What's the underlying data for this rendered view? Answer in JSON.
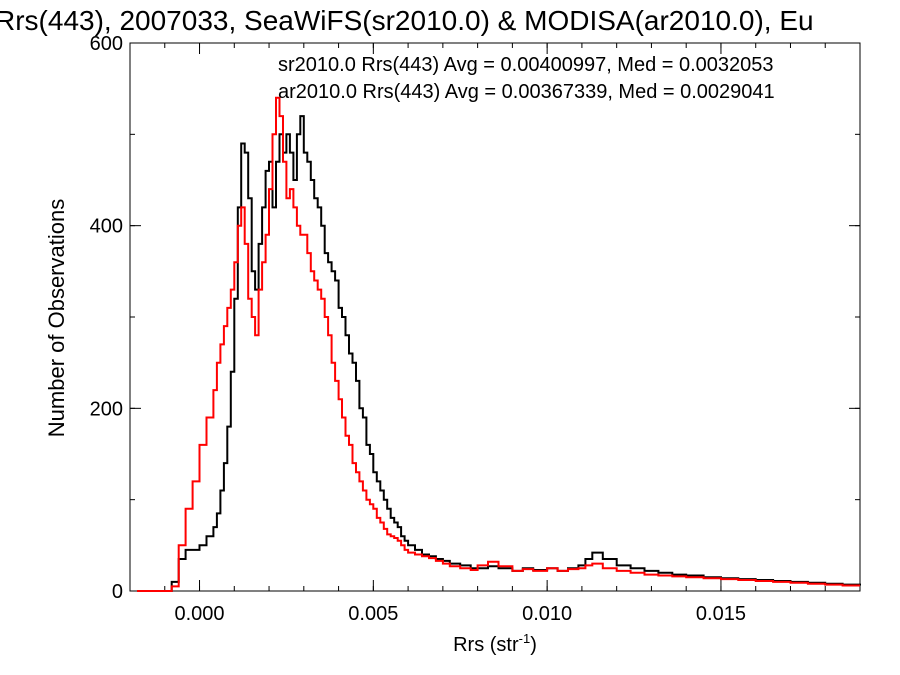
{
  "chart_data": {
    "type": "line",
    "title": "Rrs(443), 2007033, SeaWiFS(sr2010.0) & MODISA(ar2010.0), Eu",
    "xlabel": "Rrs (str",
    "xlabel_sup": "-1",
    "xlabel_close": ")",
    "ylabel": "Number of Observations",
    "xlim": [
      -0.002,
      0.019
    ],
    "ylim": [
      0,
      600
    ],
    "xticks": [
      0.0,
      0.005,
      0.01,
      0.015
    ],
    "xtick_labels": [
      "0.000",
      "0.005",
      "0.010",
      "0.015"
    ],
    "yticks": [
      0,
      200,
      400,
      600
    ],
    "ytick_labels": [
      "0",
      "200",
      "400",
      "600"
    ],
    "grid": false,
    "annotations": [
      {
        "text": "sr2010.0 Rrs(443) Avg = 0.00400997, Med = 0.0032053",
        "color": "#000000"
      },
      {
        "text": "ar2010.0 Rrs(443) Avg = 0.00367339, Med = 0.0029041",
        "color": "#ff0000"
      }
    ],
    "series": [
      {
        "color": "#000000",
        "x": [
          -0.0018,
          -0.001,
          -0.0008,
          -0.0006,
          -0.0004,
          -0.0002,
          0.0,
          0.0002,
          0.0004,
          0.0005,
          0.0006,
          0.0007,
          0.0008,
          0.0009,
          0.001,
          0.0011,
          0.0012,
          0.0013,
          0.0014,
          0.0015,
          0.0016,
          0.0017,
          0.0018,
          0.0019,
          0.002,
          0.0021,
          0.0022,
          0.0023,
          0.0024,
          0.0025,
          0.0026,
          0.0027,
          0.0028,
          0.0029,
          0.003,
          0.0031,
          0.0032,
          0.0033,
          0.0034,
          0.0035,
          0.0036,
          0.0037,
          0.0038,
          0.0039,
          0.004,
          0.0041,
          0.0042,
          0.0043,
          0.0044,
          0.0045,
          0.0046,
          0.0047,
          0.0048,
          0.0049,
          0.005,
          0.0051,
          0.0052,
          0.0053,
          0.0054,
          0.0055,
          0.0056,
          0.0057,
          0.0058,
          0.0059,
          0.006,
          0.0062,
          0.0064,
          0.0066,
          0.0068,
          0.007,
          0.0072,
          0.0075,
          0.0078,
          0.008,
          0.0083,
          0.0086,
          0.009,
          0.0093,
          0.0096,
          0.01,
          0.0103,
          0.0106,
          0.0109,
          0.0111,
          0.0113,
          0.0116,
          0.012,
          0.0124,
          0.0128,
          0.0132,
          0.0136,
          0.014,
          0.0145,
          0.015,
          0.0155,
          0.016,
          0.0165,
          0.017,
          0.0175,
          0.018,
          0.0185,
          0.019
        ],
        "y": [
          0,
          0,
          10,
          35,
          45,
          45,
          50,
          60,
          70,
          85,
          110,
          140,
          180,
          240,
          320,
          420,
          490,
          480,
          430,
          350,
          330,
          380,
          420,
          460,
          470,
          420,
          470,
          500,
          480,
          500,
          480,
          450,
          500,
          520,
          480,
          470,
          450,
          430,
          420,
          400,
          370,
          360,
          350,
          340,
          310,
          300,
          280,
          260,
          250,
          230,
          200,
          190,
          160,
          150,
          130,
          120,
          110,
          100,
          90,
          80,
          75,
          70,
          60,
          55,
          50,
          45,
          40,
          38,
          35,
          33,
          30,
          28,
          25,
          25,
          27,
          25,
          22,
          25,
          23,
          25,
          22,
          25,
          28,
          35,
          42,
          35,
          28,
          25,
          22,
          20,
          18,
          17,
          15,
          14,
          13,
          12,
          11,
          10,
          9,
          8,
          7,
          6
        ]
      },
      {
        "color": "#ff0000",
        "x": [
          -0.0018,
          -0.001,
          -0.0008,
          -0.0006,
          -0.0004,
          -0.0002,
          0.0,
          0.0002,
          0.0004,
          0.0005,
          0.0006,
          0.0007,
          0.0008,
          0.0009,
          0.001,
          0.0011,
          0.0012,
          0.0013,
          0.0014,
          0.0015,
          0.0016,
          0.0017,
          0.0018,
          0.0019,
          0.002,
          0.0021,
          0.0022,
          0.0023,
          0.0024,
          0.0025,
          0.0026,
          0.0027,
          0.0028,
          0.0029,
          0.003,
          0.0031,
          0.0032,
          0.0033,
          0.0034,
          0.0035,
          0.0036,
          0.0037,
          0.0038,
          0.0039,
          0.004,
          0.0041,
          0.0042,
          0.0043,
          0.0044,
          0.0045,
          0.0046,
          0.0047,
          0.0048,
          0.0049,
          0.005,
          0.0051,
          0.0052,
          0.0053,
          0.0054,
          0.0055,
          0.0056,
          0.0057,
          0.0058,
          0.0059,
          0.006,
          0.0062,
          0.0064,
          0.0066,
          0.0068,
          0.007,
          0.0072,
          0.0075,
          0.0078,
          0.008,
          0.0083,
          0.0086,
          0.009,
          0.0093,
          0.0096,
          0.01,
          0.0103,
          0.0106,
          0.0109,
          0.0111,
          0.0113,
          0.0116,
          0.012,
          0.0124,
          0.0128,
          0.0132,
          0.0136,
          0.014,
          0.0145,
          0.015,
          0.0155,
          0.016,
          0.0165,
          0.017,
          0.0175,
          0.018,
          0.0185,
          0.019
        ],
        "y": [
          0,
          0,
          5,
          50,
          90,
          120,
          160,
          190,
          220,
          250,
          270,
          290,
          310,
          330,
          360,
          400,
          420,
          380,
          320,
          300,
          280,
          330,
          360,
          390,
          440,
          500,
          540,
          520,
          470,
          430,
          440,
          420,
          400,
          390,
          390,
          370,
          350,
          340,
          330,
          320,
          300,
          280,
          250,
          230,
          210,
          190,
          170,
          160,
          140,
          130,
          120,
          110,
          100,
          95,
          90,
          80,
          75,
          68,
          62,
          60,
          58,
          55,
          50,
          45,
          42,
          40,
          38,
          36,
          33,
          30,
          27,
          25,
          23,
          28,
          32,
          27,
          22,
          24,
          22,
          25,
          22,
          24,
          25,
          28,
          30,
          25,
          22,
          20,
          18,
          17,
          16,
          15,
          14,
          13,
          12,
          11,
          10,
          9,
          8,
          7,
          6,
          6
        ]
      }
    ]
  }
}
